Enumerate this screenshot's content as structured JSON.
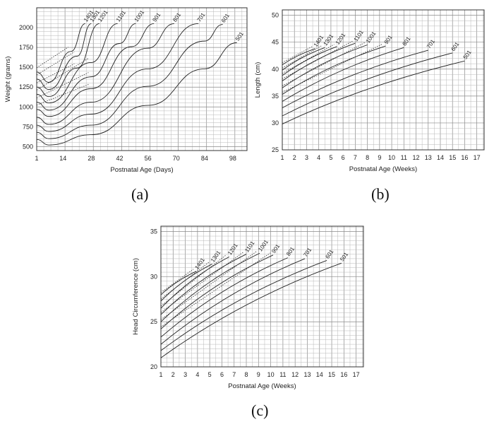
{
  "captions": [
    "(a)",
    "(b)",
    "(c)"
  ],
  "chart_data": [
    {
      "type": "line",
      "panel": "(a)",
      "xlabel": "Postnatal Age (Days)",
      "ylabel": "Weight (grams)",
      "xlim": [
        1,
        105
      ],
      "ylim": [
        450,
        2250
      ],
      "xticks": [
        1,
        14,
        28,
        42,
        56,
        70,
        84,
        98
      ],
      "yticks": [
        500,
        750,
        1000,
        1250,
        1500,
        1750,
        2000
      ],
      "grid": true,
      "series": [
        {
          "name": "501",
          "x": [
            1,
            7,
            28,
            56,
            84,
            100
          ],
          "y": [
            590,
            520,
            650,
            1020,
            1480,
            1810
          ]
        },
        {
          "name": "601",
          "x": [
            1,
            7,
            28,
            56,
            84,
            93
          ],
          "y": [
            680,
            600,
            770,
            1260,
            1830,
            2040
          ]
        },
        {
          "name": "701",
          "x": [
            1,
            7,
            28,
            56,
            81
          ],
          "y": [
            770,
            690,
            910,
            1480,
            2050
          ]
        },
        {
          "name": "801",
          "x": [
            1,
            7,
            28,
            56,
            69
          ],
          "y": [
            870,
            780,
            1060,
            1740,
            2050
          ]
        },
        {
          "name": "901",
          "x": [
            1,
            7,
            28,
            48,
            59
          ],
          "y": [
            970,
            880,
            1230,
            1760,
            2050
          ]
        },
        {
          "name": "1001",
          "x": [
            1,
            7,
            28,
            42,
            50
          ],
          "y": [
            1060,
            960,
            1380,
            1800,
            2050
          ]
        },
        {
          "name": "1101",
          "x": [
            1,
            7,
            28,
            41
          ],
          "y": [
            1160,
            1050,
            1560,
            2050
          ]
        },
        {
          "name": "1201",
          "x": [
            1,
            7,
            21,
            32
          ],
          "y": [
            1250,
            1130,
            1490,
            2050
          ]
        },
        {
          "name": "1301",
          "x": [
            1,
            7,
            21,
            28
          ],
          "y": [
            1350,
            1220,
            1640,
            2050
          ]
        },
        {
          "name": "1401",
          "x": [
            1,
            7,
            18,
            25
          ],
          "y": [
            1440,
            1310,
            1700,
            2050
          ]
        }
      ]
    },
    {
      "type": "line",
      "panel": "(b)",
      "xlabel": "Postnatal Age (Weeks)",
      "ylabel": "Length (cm)",
      "xlim": [
        1,
        17.6
      ],
      "ylim": [
        25,
        51
      ],
      "xticks": [
        1,
        2,
        3,
        4,
        5,
        6,
        7,
        8,
        9,
        10,
        11,
        12,
        13,
        14,
        15,
        16,
        17
      ],
      "yticks": [
        25,
        30,
        35,
        40,
        45,
        50
      ],
      "grid": true,
      "series": [
        {
          "name": "501",
          "x": [
            1,
            16
          ],
          "y": [
            29.8,
            41.5
          ]
        },
        {
          "name": "601",
          "x": [
            1,
            15
          ],
          "y": [
            31.3,
            43.0
          ]
        },
        {
          "name": "701",
          "x": [
            1,
            13
          ],
          "y": [
            32.8,
            43.5
          ]
        },
        {
          "name": "801",
          "x": [
            1,
            11
          ],
          "y": [
            34.0,
            44.0
          ]
        },
        {
          "name": "901",
          "x": [
            1,
            9.5
          ],
          "y": [
            35.3,
            44.3
          ]
        },
        {
          "name": "1001",
          "x": [
            1,
            8
          ],
          "y": [
            36.5,
            44.5
          ]
        },
        {
          "name": "1101",
          "x": [
            1,
            7
          ],
          "y": [
            37.8,
            44.8
          ]
        },
        {
          "name": "1201",
          "x": [
            1,
            5.5
          ],
          "y": [
            38.8,
            44.2
          ]
        },
        {
          "name": "1301",
          "x": [
            1,
            4.5
          ],
          "y": [
            39.8,
            44.0
          ]
        },
        {
          "name": "1401",
          "x": [
            1,
            3.7
          ],
          "y": [
            40.8,
            43.8
          ]
        }
      ]
    },
    {
      "type": "line",
      "panel": "(c)",
      "xlabel": "Postnatal Age (Weeks)",
      "ylabel": "Head Circumference (cm)",
      "xlim": [
        1,
        17.6
      ],
      "ylim": [
        20,
        35.6
      ],
      "xticks": [
        1,
        2,
        3,
        4,
        5,
        6,
        7,
        8,
        9,
        10,
        11,
        12,
        13,
        14,
        15,
        16,
        17
      ],
      "yticks": [
        20,
        25,
        30,
        35
      ],
      "grid": true,
      "series": [
        {
          "name": "501",
          "x": [
            1,
            15.8
          ],
          "y": [
            21.0,
            31.5
          ]
        },
        {
          "name": "601",
          "x": [
            1,
            14.6
          ],
          "y": [
            21.8,
            31.8
          ]
        },
        {
          "name": "701",
          "x": [
            1,
            12.8
          ],
          "y": [
            22.5,
            32.0
          ]
        },
        {
          "name": "801",
          "x": [
            1,
            11.4
          ],
          "y": [
            23.3,
            32.1
          ]
        },
        {
          "name": "901",
          "x": [
            1,
            10.2
          ],
          "y": [
            24.2,
            32.4
          ]
        },
        {
          "name": "1001",
          "x": [
            1,
            9.1
          ],
          "y": [
            25.0,
            32.6
          ]
        },
        {
          "name": "1101",
          "x": [
            1,
            8.0
          ],
          "y": [
            25.8,
            32.5
          ]
        },
        {
          "name": "1201",
          "x": [
            1,
            6.6
          ],
          "y": [
            26.5,
            32.2
          ]
        },
        {
          "name": "1301",
          "x": [
            1,
            5.2
          ],
          "y": [
            27.3,
            31.4
          ]
        },
        {
          "name": "1401",
          "x": [
            1,
            3.9
          ],
          "y": [
            28.0,
            30.6
          ]
        }
      ]
    }
  ]
}
